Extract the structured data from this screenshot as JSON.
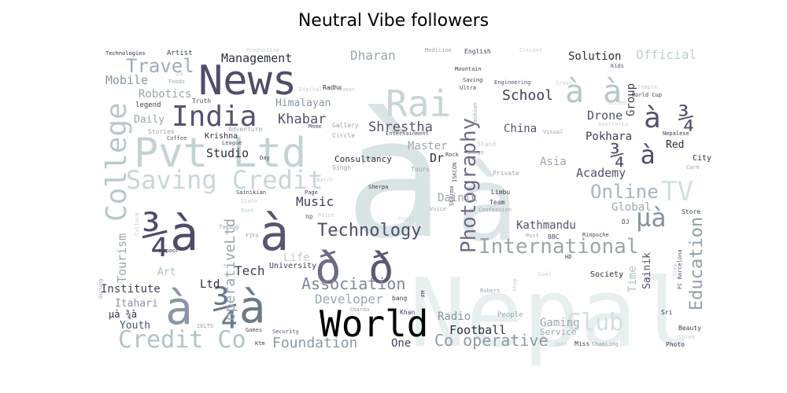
{
  "chart_data": {
    "type": "wordcloud",
    "title": "Neutral Vibe followers",
    "background": "#ffffff",
    "colormap": "bone",
    "words": [
      {
        "text": "à",
        "weight": 100,
        "color": "#d9e4e4"
      },
      {
        "text": "Nepal",
        "weight": 92,
        "color": "#e8efef"
      },
      {
        "text": "à",
        "weight": 88,
        "color": "#dde6e6"
      },
      {
        "text": "Pvt Ltd",
        "weight": 60,
        "color": "#c3d3d3"
      },
      {
        "text": "News",
        "weight": 58,
        "color": "#4e4e6a"
      },
      {
        "text": "¾à",
        "weight": 56,
        "color": "#4c4c68"
      },
      {
        "text": "à",
        "weight": 55,
        "color": "#57576f"
      },
      {
        "text": "¾à",
        "weight": 53,
        "color": "#6b7a8a"
      },
      {
        "text": "à",
        "weight": 50,
        "color": "#8a96a6"
      },
      {
        "text": "World",
        "weight": 46,
        "color": "#000000"
      },
      {
        "text": "Rai",
        "weight": 45,
        "color": "#c7d5d5"
      },
      {
        "text": "ð",
        "weight": 44,
        "color": "#6b6b85"
      },
      {
        "text": "ð",
        "weight": 42,
        "color": "#5a5a75"
      },
      {
        "text": "College",
        "weight": 40,
        "color": "#b7c9c9"
      },
      {
        "text": "India",
        "weight": 39,
        "color": "#53536f"
      },
      {
        "text": "Saving Credit",
        "weight": 36,
        "color": "#c9d7d7"
      },
      {
        "text": "Credit Co",
        "weight": 34,
        "color": "#b1c4c4"
      },
      {
        "text": "Photography",
        "weight": 33,
        "color": "#6c6c88"
      },
      {
        "text": "Club",
        "weight": 32,
        "color": "#d4e0e0"
      },
      {
        "text": "TV",
        "weight": 31,
        "color": "#d4e0e0"
      },
      {
        "text": "Education",
        "weight": 30,
        "color": "#90a0ad"
      },
      {
        "text": "µà",
        "weight": 30,
        "color": "#87939e"
      },
      {
        "text": "International",
        "weight": 29,
        "color": "#9aa6b0"
      },
      {
        "text": "à à",
        "weight": 28,
        "color": "#b6c7c7"
      },
      {
        "text": "Online",
        "weight": 27,
        "color": "#a6b6bd"
      },
      {
        "text": "Technology",
        "weight": 26,
        "color": "#4d4d68"
      },
      {
        "text": "à ¾",
        "weight": 26,
        "color": "#52526d"
      },
      {
        "text": "¾ à",
        "weight": 25,
        "color": "#4f4f6a"
      },
      {
        "text": "Travel",
        "weight": 24,
        "color": "#9fadb9"
      },
      {
        "text": "Association",
        "weight": 22,
        "color": "#7d8898"
      },
      {
        "text": "Co operative",
        "weight": 22,
        "color": "#8c9aa6"
      },
      {
        "text": "Foundation",
        "weight": 21,
        "color": "#8c9aa6"
      },
      {
        "text": "Shrestha",
        "weight": 20,
        "color": "#52526d"
      },
      {
        "text": "Khabar",
        "weight": 20,
        "color": "#52526d"
      },
      {
        "text": "operativeLtd",
        "weight": 20,
        "color": "#9aa6b0"
      },
      {
        "text": "Tourism",
        "weight": 19,
        "color": "#9aa6b0"
      },
      {
        "text": "Music",
        "weight": 19,
        "color": "#3e3e58"
      },
      {
        "text": "School",
        "weight": 18,
        "color": "#3e3e58"
      },
      {
        "text": "Academy",
        "weight": 18,
        "color": "#52526d"
      },
      {
        "text": "Kathmandu",
        "weight": 17,
        "color": "#52526d"
      },
      {
        "text": "Management",
        "weight": 17,
        "color": "#2c2c3e"
      },
      {
        "text": "Dharan",
        "weight": 17,
        "color": "#9aa6b0"
      },
      {
        "text": "Official",
        "weight": 17,
        "color": "#c0d0d0"
      },
      {
        "text": "Solution",
        "weight": 16,
        "color": "#2c2c3e"
      },
      {
        "text": "Developer",
        "weight": 16,
        "color": "#9aa6b0"
      },
      {
        "text": "Tech",
        "weight": 16,
        "color": "#3e3e58"
      },
      {
        "text": "Mobile",
        "weight": 16,
        "color": "#8895a2"
      },
      {
        "text": "Robotics",
        "weight": 16,
        "color": "#9aa6b0"
      },
      {
        "text": "Institute",
        "weight": 15,
        "color": "#3e3e58"
      },
      {
        "text": "Himalayan",
        "weight": 15,
        "color": "#8895a2"
      },
      {
        "text": "Drone",
        "weight": 15,
        "color": "#52526d"
      },
      {
        "text": "Pokhara",
        "weight": 15,
        "color": "#3e3e58"
      },
      {
        "text": "Football",
        "weight": 15,
        "color": "#2c2c3e"
      },
      {
        "text": "Gaming",
        "weight": 15,
        "color": "#9aa6b0"
      },
      {
        "text": "Studio",
        "weight": 15,
        "color": "#2c2c3e"
      },
      {
        "text": "China",
        "weight": 14,
        "color": "#52526d"
      },
      {
        "text": "Group",
        "weight": 14,
        "color": "#3e3e58"
      },
      {
        "text": "Global",
        "weight": 14,
        "color": "#9aa6b0"
      },
      {
        "text": "Asia",
        "weight": 14,
        "color": "#9aa6b0"
      },
      {
        "text": "Dainik",
        "weight": 14,
        "color": "#9aa6b0"
      },
      {
        "text": "Dr",
        "weight": 14,
        "color": "#2c2c3e"
      },
      {
        "text": "Master",
        "weight": 14,
        "color": "#9aa6b0"
      },
      {
        "text": "Life",
        "weight": 14,
        "color": "#c0d0d0"
      },
      {
        "text": "Radio",
        "weight": 14,
        "color": "#8895a2"
      },
      {
        "text": "Itahari",
        "weight": 14,
        "color": "#8895a2"
      },
      {
        "text": "Youth",
        "weight": 14,
        "color": "#52526d"
      },
      {
        "text": "One",
        "weight": 14,
        "color": "#3e3e58"
      },
      {
        "text": "Time",
        "weight": 14,
        "color": "#b0c0c0"
      },
      {
        "text": "Sainik",
        "weight": 14,
        "color": "#52526d"
      },
      {
        "text": "Ltd",
        "weight": 14,
        "color": "#2c2c3e"
      },
      {
        "text": "Art",
        "weight": 13,
        "color": "#b0c0c0"
      },
      {
        "text": "Daily",
        "weight": 13,
        "color": "#9aa6b0"
      },
      {
        "text": "Red",
        "weight": 13,
        "color": "#2c2c3e"
      },
      {
        "text": "Consultancy",
        "weight": 11,
        "color": "#2c2c3e"
      },
      {
        "text": "Service",
        "weight": 11,
        "color": "#9aa6b0"
      },
      {
        "text": "µà ¾à",
        "weight": 12,
        "color": "#2c2c3e"
      },
      {
        "text": "Krishna",
        "weight": 10,
        "color": "#2c2c3e"
      },
      {
        "text": "University",
        "weight": 10,
        "color": "#3e3e58"
      },
      {
        "text": "Society",
        "weight": 10,
        "color": "#2c2c3e"
      },
      {
        "text": "City",
        "weight": 10,
        "color": "#2c2c3e"
      },
      {
        "text": "Store",
        "weight": 9,
        "color": "#3e3e58"
      },
      {
        "text": "Artist",
        "weight": 9,
        "color": "#3e3e58"
      },
      {
        "text": "English",
        "weight": 9,
        "color": "#3e3e58"
      },
      {
        "text": "Technologies",
        "weight": 8,
        "color": "#2c2c3e"
      },
      {
        "text": "legend",
        "weight": 9,
        "color": "#3e3e58"
      },
      {
        "text": "Truth",
        "weight": 8,
        "color": "#52526d"
      },
      {
        "text": "Radha",
        "weight": 8,
        "color": "#2c2c3e"
      },
      {
        "text": "Stories",
        "weight": 9,
        "color": "#9aa6b0"
      },
      {
        "text": "Coffee",
        "weight": 8,
        "color": "#52526d"
      },
      {
        "text": "Adventure",
        "weight": 9,
        "color": "#9aa6b0"
      },
      {
        "text": "League",
        "weight": 8,
        "color": "#52526d"
      },
      {
        "text": "Meme",
        "weight": 8,
        "color": "#52526d"
      },
      {
        "text": "Gallery",
        "weight": 8,
        "color": "#9aa6b0"
      },
      {
        "text": "Circle",
        "weight": 8,
        "color": "#9aa6b0"
      },
      {
        "text": "Entertainment",
        "weight": 8,
        "color": "#52526d"
      },
      {
        "text": "Songs",
        "weight": 8,
        "color": "#9aa6b0"
      },
      {
        "text": "Private",
        "weight": 8,
        "color": "#9aa6b0"
      },
      {
        "text": "Limbu",
        "weight": 8,
        "color": "#3e3e58"
      },
      {
        "text": "Team",
        "weight": 8,
        "color": "#3e3e58"
      },
      {
        "text": "Confession",
        "weight": 8,
        "color": "#9aa6b0"
      },
      {
        "text": "Singh",
        "weight": 9,
        "color": "#9aa6b0"
      },
      {
        "text": "Tours",
        "weight": 9,
        "color": "#9aa6b0"
      },
      {
        "text": "Sherpa",
        "weight": 8,
        "color": "#3e3e58"
      },
      {
        "text": "Voice",
        "weight": 8,
        "color": "#9aa6b0"
      },
      {
        "text": "Sainikian",
        "weight": 8,
        "color": "#3e3e58"
      },
      {
        "text": "Page",
        "weight": 8,
        "color": "#3e3e58"
      },
      {
        "text": "Tamang",
        "weight": 8,
        "color": "#9aa6b0"
      },
      {
        "text": "FIFA",
        "weight": 8,
        "color": "#9aa6b0"
      },
      {
        "text": "Kapoor",
        "weight": 8,
        "color": "#3e3e58"
      },
      {
        "text": "Nepalese",
        "weight": 8,
        "color": "#3e3e58"
      },
      {
        "text": "World Cup",
        "weight": 8,
        "color": "#3e3e58"
      },
      {
        "text": "Temple",
        "weight": 8,
        "color": "#c0d0d0"
      },
      {
        "text": "Silver",
        "weight": 8,
        "color": "#c0d0d0"
      },
      {
        "text": "Australia",
        "weight": 8,
        "color": "#c0d0d0"
      },
      {
        "text": "Kids",
        "weight": 8,
        "color": "#52526d"
      },
      {
        "text": "Mountain",
        "weight": 8,
        "color": "#3e3e58"
      },
      {
        "text": "Saving",
        "weight": 8,
        "color": "#3e3e58"
      },
      {
        "text": "Ultra",
        "weight": 8,
        "color": "#3e3e58"
      },
      {
        "text": "Engineering",
        "weight": 8,
        "color": "#52526d"
      },
      {
        "text": "Cross",
        "weight": 8,
        "color": "#c0d0d0"
      },
      {
        "text": "Medicine",
        "weight": 8,
        "color": "#9aa6b0"
      },
      {
        "text": "Cricket",
        "weight": 8,
        "color": "#c0d0d0"
      },
      {
        "text": "Production",
        "weight": 8,
        "color": "#c0d0d0"
      },
      {
        "text": "Digital",
        "weight": 8,
        "color": "#c0d0d0"
      },
      {
        "text": "Suman",
        "weight": 8,
        "color": "#c0d0d0"
      },
      {
        "text": "Foods",
        "weight": 8,
        "color": "#9aa6b0"
      },
      {
        "text": "Da",
        "weight": 8,
        "color": "#c0d0d0"
      },
      {
        "text": "Day",
        "weight": 8,
        "color": "#3e3e58"
      },
      {
        "text": "Batch",
        "weight": 8,
        "color": "#c0d0d0"
      },
      {
        "text": "Bank",
        "weight": 8,
        "color": "#c0d0d0"
      },
      {
        "text": "Paint",
        "weight": 8,
        "color": "#c0d0d0"
      },
      {
        "text": "Troll",
        "weight": 8,
        "color": "#c0d0d0"
      },
      {
        "text": "Post",
        "weight": 8,
        "color": "#9aa6b0"
      },
      {
        "text": "BBC",
        "weight": 8,
        "color": "#52526d"
      },
      {
        "text": "Rinpoche",
        "weight": 8,
        "color": "#3e3e58"
      },
      {
        "text": "DJ",
        "weight": 8,
        "color": "#3e3e58"
      },
      {
        "text": "HD",
        "weight": 8,
        "color": "#3e3e58"
      },
      {
        "text": "Goal",
        "weight": 8,
        "color": "#c0d0d0"
      },
      {
        "text": "Trek",
        "weight": 8,
        "color": "#c0d0d0"
      },
      {
        "text": "FC Barcelona",
        "weight": 8,
        "color": "#52526d"
      },
      {
        "text": "Gurung",
        "weight": 8,
        "color": "#9aa6b0"
      },
      {
        "text": "Culture",
        "weight": 8,
        "color": "#c0d0d0"
      },
      {
        "text": "IELTS",
        "weight": 8,
        "color": "#9aa6b0"
      },
      {
        "text": "Games",
        "weight": 8,
        "color": "#52526d"
      },
      {
        "text": "Security",
        "weight": 8,
        "color": "#52526d"
      },
      {
        "text": "Ktm",
        "weight": 8,
        "color": "#3e3e58"
      },
      {
        "text": "bang",
        "weight": 8,
        "color": "#3e3e58"
      },
      {
        "text": "Khan",
        "weight": 8,
        "color": "#3e3e58"
      },
      {
        "text": "Sharda",
        "weight": 8,
        "color": "#9aa6b0"
      },
      {
        "text": "Robert",
        "weight": 8,
        "color": "#9aa6b0"
      },
      {
        "text": "People",
        "weight": 9,
        "color": "#9aa6b0"
      },
      {
        "text": "John",
        "weight": 8,
        "color": "#c0d0d0"
      },
      {
        "text": "Miss",
        "weight": 8,
        "color": "#3e3e58"
      },
      {
        "text": "Chamling",
        "weight": 8,
        "color": "#9aa6b0"
      },
      {
        "text": "Photo",
        "weight": 8,
        "color": "#3e3e58"
      },
      {
        "text": "Shree",
        "weight": 8,
        "color": "#c0d0d0"
      },
      {
        "text": "Beauty",
        "weight": 8,
        "color": "#3e3e58"
      },
      {
        "text": "Sri",
        "weight": 8,
        "color": "#3e3e58"
      },
      {
        "text": "Care",
        "weight": 8,
        "color": "#9aa6b0"
      },
      {
        "text": "Sharma",
        "weight": 8,
        "color": "#52526d"
      },
      {
        "text": "ISKCON",
        "weight": 8,
        "color": "#52526d"
      },
      {
        "text": "Fashion",
        "weight": 8,
        "color": "#9aa6b0"
      },
      {
        "text": "Rock",
        "weight": 8,
        "color": "#3e3e58"
      },
      {
        "text": "Visual",
        "weight": 8,
        "color": "#9aa6b0"
      },
      {
        "text": "Shop",
        "weight": 8,
        "color": "#c0d0d0"
      },
      {
        "text": "FM",
        "weight": 8,
        "color": "#3e3e58"
      },
      {
        "text": "State",
        "weight": 8,
        "color": "#c0d0d0"
      },
      {
        "text": "np",
        "weight": 8,
        "color": "#52526d"
      },
      {
        "text": "Stand",
        "weight": 8,
        "color": "#c0d0d0"
      }
    ]
  }
}
